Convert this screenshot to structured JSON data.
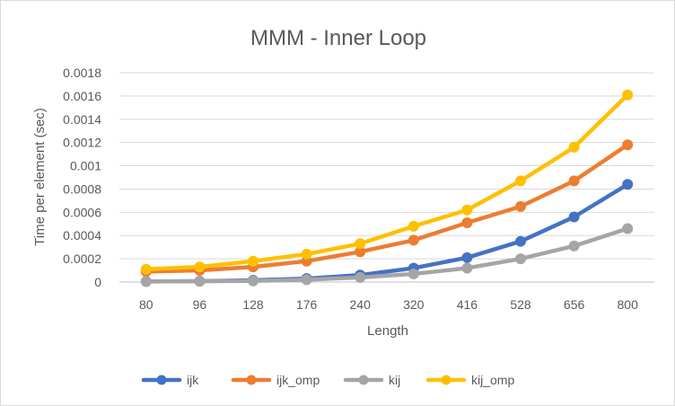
{
  "chart_data": {
    "type": "line",
    "title": "MMM - Inner Loop",
    "xlabel": "Length",
    "ylabel": "Time per element (sec)",
    "categories": [
      "80",
      "96",
      "128",
      "176",
      "240",
      "320",
      "416",
      "528",
      "656",
      "800"
    ],
    "ylim": [
      0,
      0.0018
    ],
    "yticks": [
      "0",
      "0.0002",
      "0.0004",
      "0.0006",
      "0.0008",
      "0.001",
      "0.0012",
      "0.0014",
      "0.0016",
      "0.0018"
    ],
    "grid": true,
    "legend": "bottom",
    "series": [
      {
        "name": "ijk",
        "color": "#4472C4",
        "values": [
          5e-06,
          8e-06,
          1.5e-05,
          3e-05,
          6e-05,
          0.00012,
          0.00021,
          0.00035,
          0.00056,
          0.00084
        ]
      },
      {
        "name": "ijk_omp",
        "color": "#ED7D31",
        "values": [
          9e-05,
          0.0001,
          0.00013,
          0.00018,
          0.00026,
          0.00036,
          0.00051,
          0.00065,
          0.00087,
          0.00118
        ]
      },
      {
        "name": "kij",
        "color": "#A5A5A5",
        "values": [
          5e-06,
          7e-06,
          1e-05,
          2e-05,
          4e-05,
          7e-05,
          0.00012,
          0.0002,
          0.00031,
          0.00046
        ]
      },
      {
        "name": "kij_omp",
        "color": "#FFC000",
        "values": [
          0.00011,
          0.00013,
          0.00018,
          0.00024,
          0.00033,
          0.00048,
          0.00062,
          0.00087,
          0.00116,
          0.00161
        ]
      }
    ]
  }
}
